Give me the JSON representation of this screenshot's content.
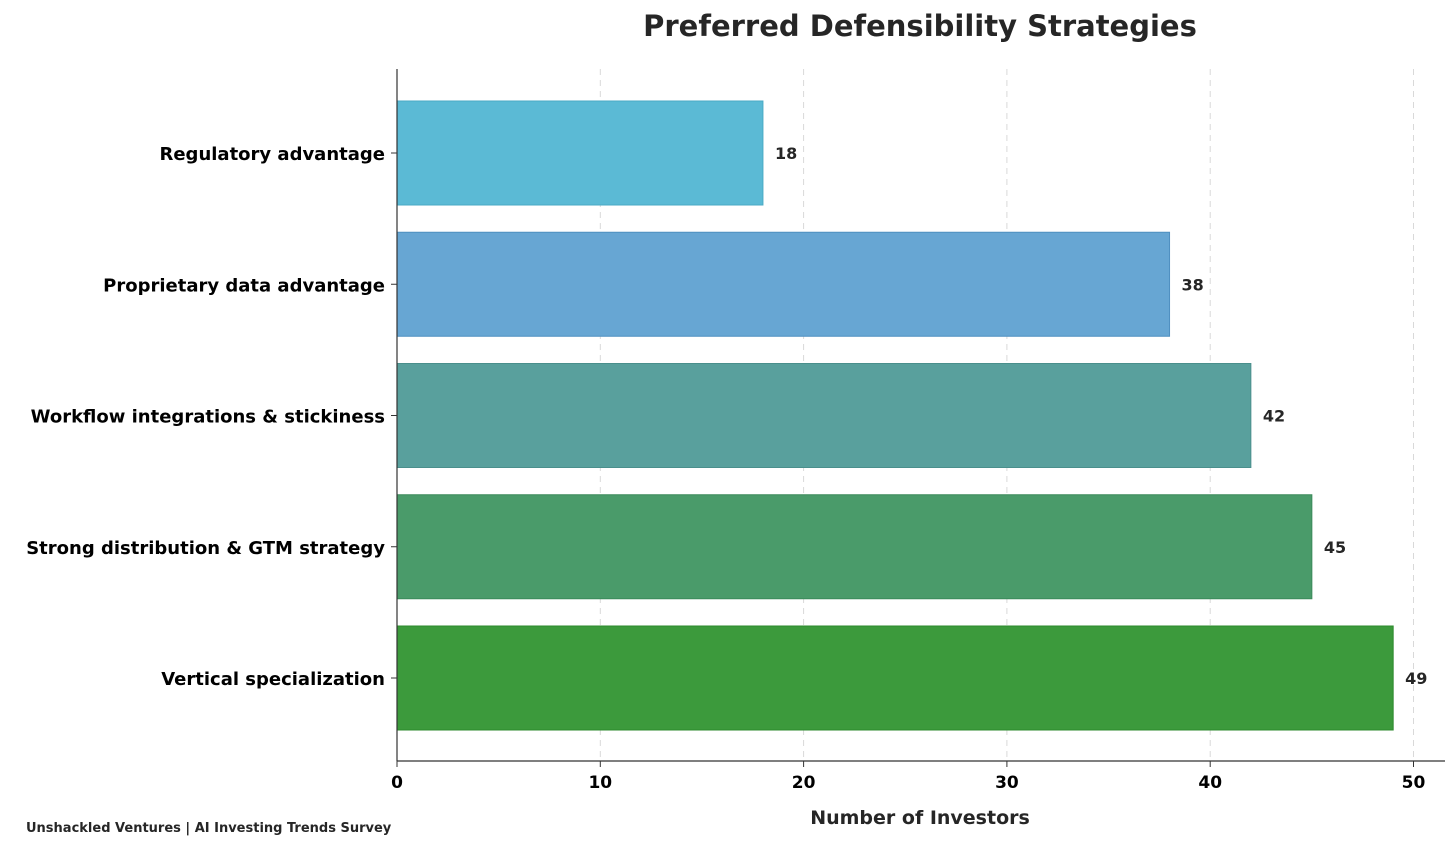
{
  "chart_data": {
    "type": "bar",
    "orientation": "horizontal",
    "title": "Preferred Defensibility Strategies",
    "xlabel": "Number of Investors",
    "ylabel": "",
    "xlim": [
      0,
      51.5
    ],
    "xticks": [
      0,
      10,
      20,
      30,
      40,
      50
    ],
    "grid": "x-dashed",
    "categories": [
      "Regulatory advantage",
      "Proprietary data advantage",
      "Workflow integrations & stickiness",
      "Strong distribution & GTM strategy",
      "Vertical specialization"
    ],
    "values": [
      18,
      38,
      42,
      45,
      49
    ],
    "colors": [
      "#5bbad5",
      "#67a6d3",
      "#59a09d",
      "#4a9b6a",
      "#3c9a3c"
    ],
    "edge_colors": [
      "#4aaac5",
      "#4f8fc0",
      "#4a8f8c",
      "#3b8a5a",
      "#2d8a2d"
    ]
  },
  "source": "Unshackled Ventures | AI Investing Trends Survey"
}
